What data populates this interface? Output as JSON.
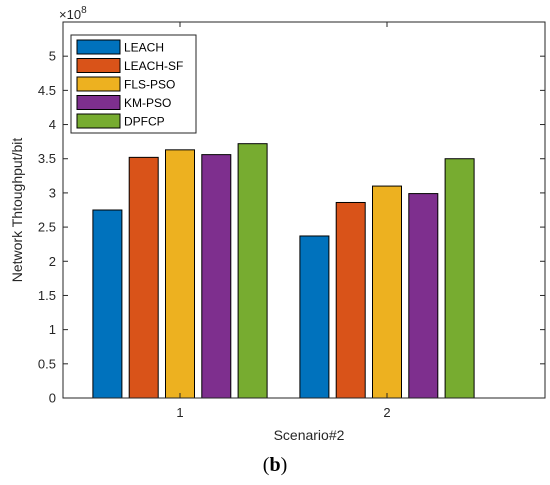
{
  "chart_data": {
    "type": "bar",
    "categories": [
      "1",
      "2"
    ],
    "series": [
      {
        "name": "LEACH",
        "color": "#0072BD",
        "values": [
          275000000,
          237000000
        ]
      },
      {
        "name": "LEACH-SF",
        "color": "#D95319",
        "values": [
          352000000,
          286000000
        ]
      },
      {
        "name": "FLS-PSO",
        "color": "#EDB120",
        "values": [
          363000000,
          310000000
        ]
      },
      {
        "name": "KM-PSO",
        "color": "#7E2F8E",
        "values": [
          356000000,
          299000000
        ]
      },
      {
        "name": "DPFCP",
        "color": "#77AC30",
        "values": [
          372000000,
          350000000
        ]
      }
    ],
    "xlabel": "Scenario#2",
    "ylabel": "Network Thtoughput/bit",
    "ylim": [
      0,
      550000000
    ],
    "yticks": [
      0,
      50000000,
      100000000,
      150000000,
      200000000,
      250000000,
      300000000,
      350000000,
      400000000,
      450000000,
      500000000
    ],
    "ytick_labels": [
      "0",
      "0.5",
      "1",
      "1.5",
      "2",
      "2.5",
      "3",
      "3.5",
      "4",
      "4.5",
      "5"
    ],
    "y_exponent_label": "×10",
    "y_exponent": "8",
    "legend_position": "top-left",
    "grid": false
  },
  "caption": {
    "open": "(",
    "letter": "b",
    "close": ")"
  }
}
